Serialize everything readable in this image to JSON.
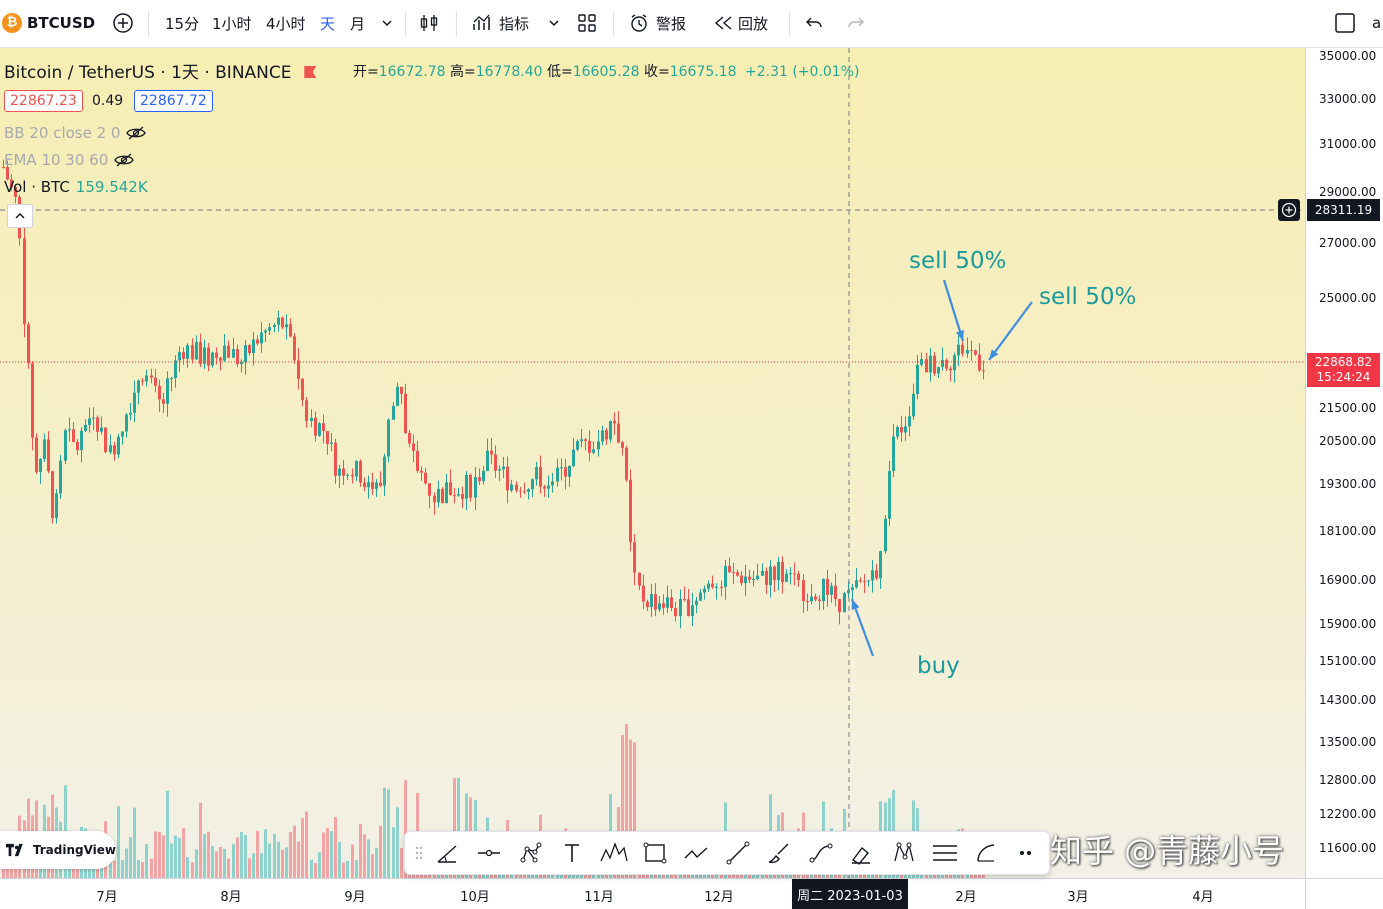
{
  "toolbar": {
    "symbol": "BTCUSD",
    "intervals": [
      "15分",
      "1小时",
      "4小时",
      "天",
      "月"
    ],
    "active_interval": "天",
    "indicators_label": "指标",
    "alert_label": "警报",
    "replay_label": "回放",
    "right_cut_text": "a"
  },
  "legend": {
    "title": "Bitcoin / TetherUS · 1天 · BINANCE",
    "open_label": "开=",
    "open": "16672.78",
    "high_label": "高=",
    "high": "16778.40",
    "low_label": "低=",
    "low": "16605.28",
    "close_label": "收=",
    "close": "16675.18",
    "change": "+2.31 (+0.01%)",
    "bid": "22867.23",
    "spread": "0.49",
    "ask": "22867.72"
  },
  "indicators": [
    {
      "label": "BB 20 close 2 0"
    },
    {
      "label": "EMA 10 30 60"
    }
  ],
  "volume": {
    "label": "Vol · BTC",
    "value": "159.542K"
  },
  "price_axis": {
    "ticks": [
      "35000.00",
      "33000.00",
      "31000.00",
      "29000.00",
      "27000.00",
      "25000.00",
      "21500.00",
      "20500.00",
      "19300.00",
      "18100.00",
      "16900.00",
      "15900.00",
      "15100.00",
      "14300.00",
      "13500.00",
      "12800.00",
      "12200.00",
      "11600.00"
    ],
    "crosshair_price": "28311.19",
    "last_price": "22868.82",
    "countdown": "15:24:24"
  },
  "time_axis": {
    "ticks": [
      "7月",
      "8月",
      "9月",
      "10月",
      "11月",
      "12月",
      "2月",
      "3月",
      "4月"
    ],
    "crosshair_date": "周二 2023-01-03"
  },
  "annotations": {
    "sell1": "sell 50%",
    "sell2": "sell 50%",
    "buy": "buy"
  },
  "watermark": "知乎 @青藤小号",
  "tv_logo": "TradingView",
  "colors": {
    "up": "#26a69a",
    "down": "#ef5350",
    "annotation": "#1b9b9b",
    "arrow": "#3f8ee0",
    "last_price": "#f23645"
  },
  "chart_data": {
    "type": "candlestick",
    "x_range": [
      "2022-06",
      "2023-04"
    ],
    "ylim": [
      11400,
      35500
    ],
    "scale": "log",
    "segments": [
      {
        "label": "late June 2022 crash",
        "from": 30500,
        "to": 18000
      },
      {
        "label": "July–August rally",
        "from": 19300,
        "to": 24400
      },
      {
        "label": "Sept–Oct range",
        "from": 21500,
        "to": 18500
      },
      {
        "label": "November crash",
        "from": 21200,
        "to": 15900
      },
      {
        "label": "December consolidation",
        "from": 16900,
        "to": 16600
      },
      {
        "label": "January 2023 rally",
        "from": 16700,
        "to": 23800
      }
    ],
    "volume_series": "per-candle volume bars in the lower panel"
  }
}
